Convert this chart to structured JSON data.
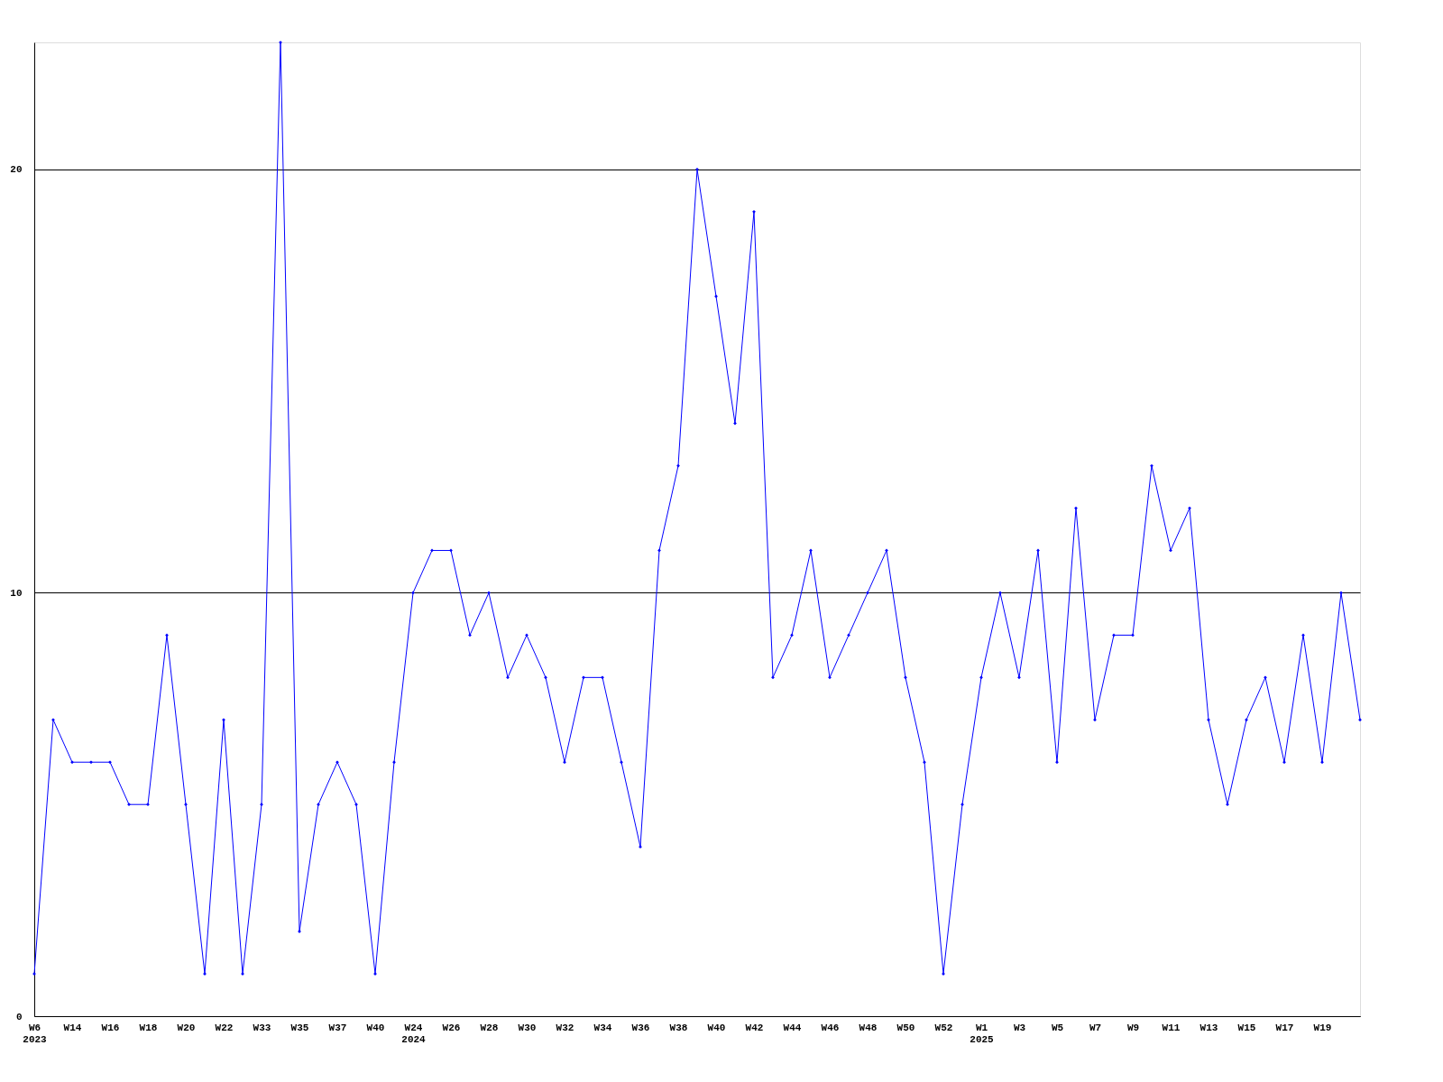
{
  "chart_data": {
    "type": "line",
    "categories": [
      "W6\n2023",
      null,
      "W14",
      null,
      "W16",
      null,
      "W18",
      null,
      "W20",
      null,
      "W22",
      null,
      "W33",
      null,
      "W35",
      null,
      "W37",
      null,
      "W40",
      null,
      "W24\n2024",
      null,
      "W26",
      null,
      "W28",
      null,
      "W30",
      null,
      "W32",
      null,
      "W34",
      null,
      "W36",
      null,
      "W38",
      null,
      "W40",
      null,
      "W42",
      null,
      "W44",
      null,
      "W46",
      null,
      "W48",
      null,
      "W50",
      null,
      "W52",
      null,
      "W1\n2025",
      null,
      "W3",
      null,
      "W5",
      null,
      "W7",
      null,
      "W9",
      null,
      "W11",
      null,
      "W13",
      null,
      "W15",
      null,
      "W17",
      null,
      "W19",
      null,
      null
    ],
    "series": [
      {
        "color": "#0000ff",
        "values": [
          1,
          7,
          6,
          6,
          6,
          5,
          5,
          9,
          5,
          1,
          7,
          1,
          5,
          23,
          2,
          5,
          6,
          5,
          1,
          6,
          10,
          11,
          11,
          9,
          10,
          8,
          9,
          8,
          6,
          8,
          8,
          6,
          4,
          11,
          13,
          20,
          17,
          14,
          19,
          8,
          9,
          11,
          8,
          9,
          10,
          11,
          8,
          6,
          1,
          5,
          8,
          10,
          8,
          11,
          6,
          12,
          7,
          9,
          9,
          13,
          11,
          12,
          7,
          5,
          7,
          8,
          6,
          9,
          6,
          10,
          7
        ]
      }
    ],
    "ylim": [
      0,
      23
    ],
    "yticks": [
      0,
      10,
      20
    ],
    "grid": "y",
    "marker": "diamond",
    "line_style": "solid"
  }
}
